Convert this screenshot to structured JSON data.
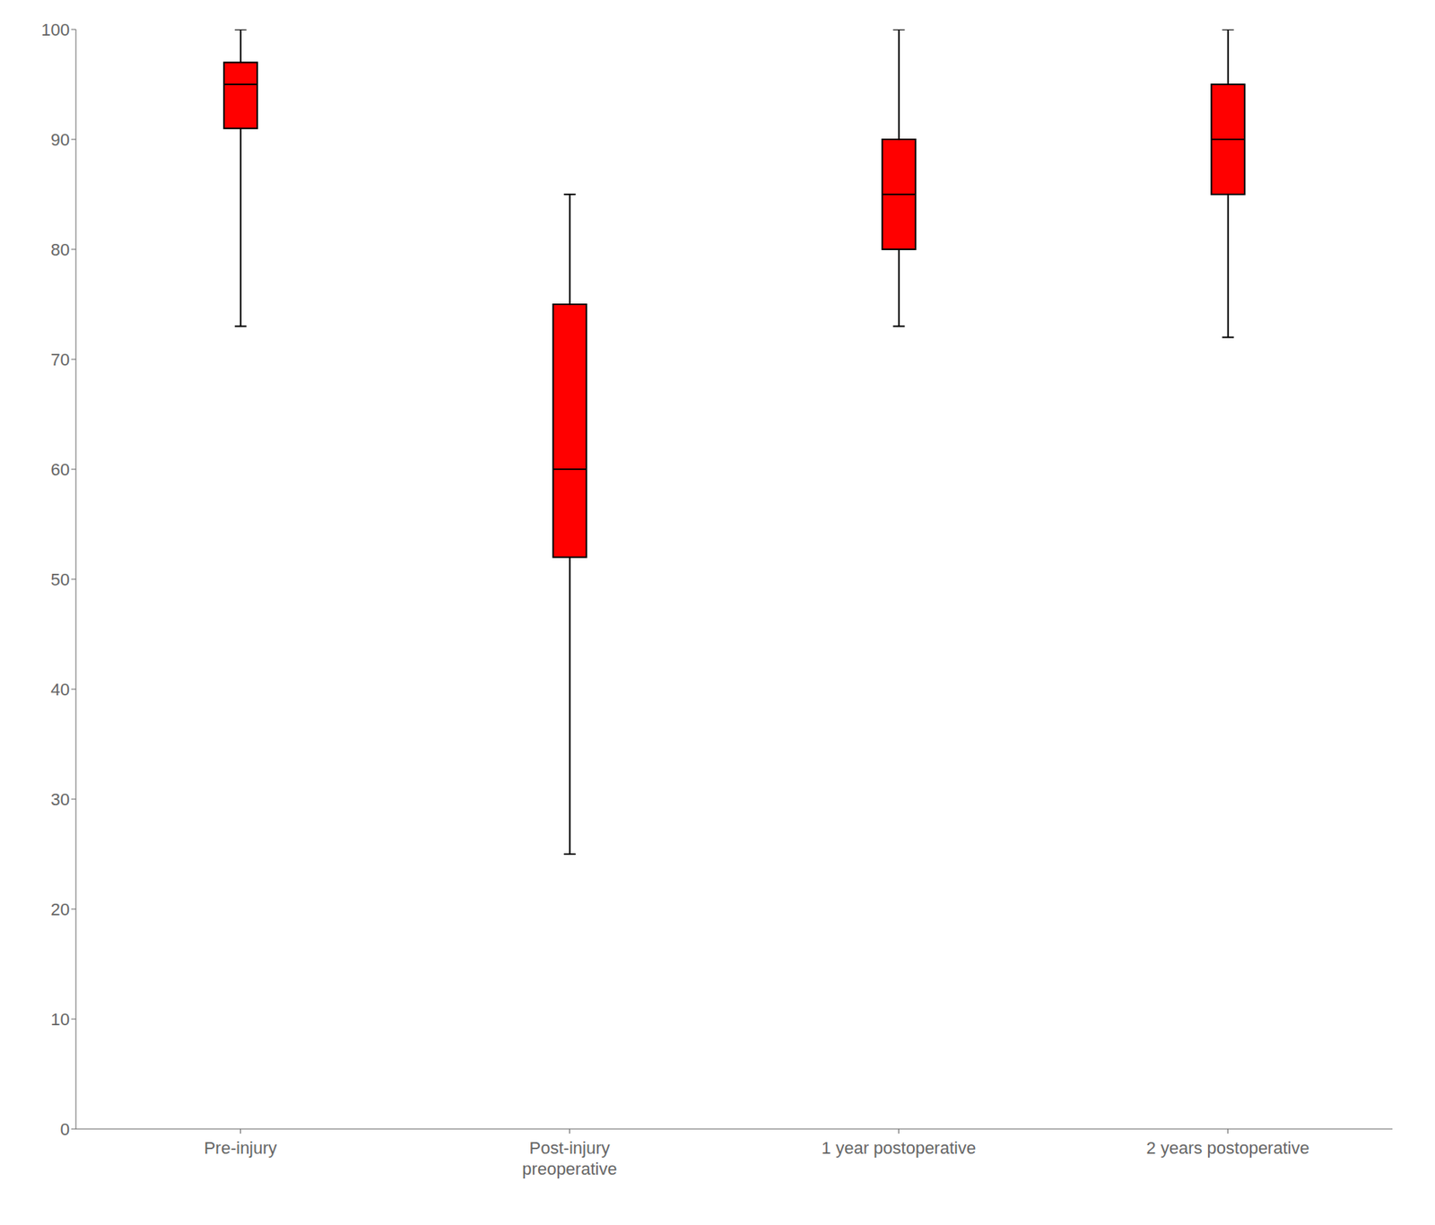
{
  "chart_data": {
    "type": "box",
    "categories": [
      "Pre-injury",
      "Post-injury\npreoperative",
      "1 year postoperative",
      "2 years postoperative"
    ],
    "boxes": [
      {
        "whisker_min": 73,
        "q1": 91,
        "median": 95,
        "q3": 97,
        "whisker_max": 100
      },
      {
        "whisker_min": 25,
        "q1": 52,
        "median": 60,
        "q3": 75,
        "whisker_max": 85
      },
      {
        "whisker_min": 73,
        "q1": 80,
        "median": 85,
        "q3": 90,
        "whisker_max": 100
      },
      {
        "whisker_min": 72,
        "q1": 85,
        "median": 90,
        "q3": 95,
        "whisker_max": 100
      }
    ],
    "color": "#FF0000",
    "ylim": [
      0,
      100
    ],
    "yticks": [
      0,
      10,
      20,
      30,
      40,
      50,
      60,
      70,
      80,
      90,
      100
    ],
    "grid": false
  }
}
